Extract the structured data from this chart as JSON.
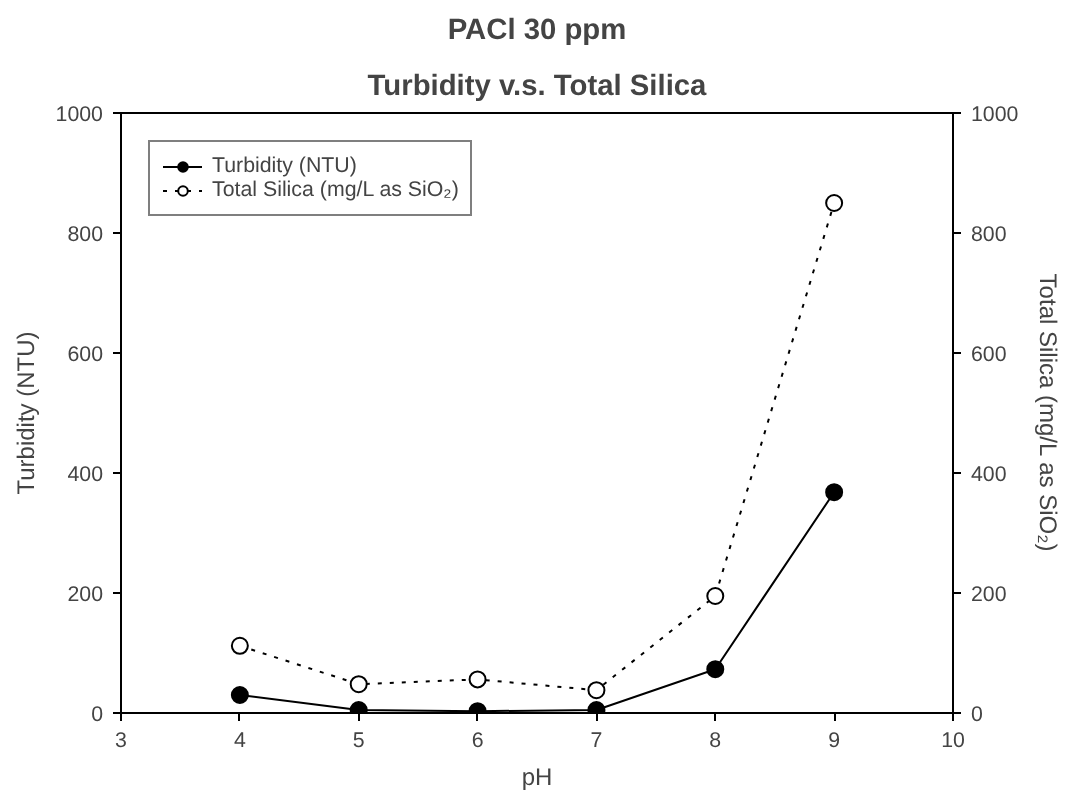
{
  "chart_data": {
    "type": "line",
    "title": "PACl 30 ppm",
    "subtitle": "Turbidity v.s. Total Silica",
    "xlabel": "pH",
    "ylabel": "Turbidity (NTU)",
    "y2label": "Total Silica (mg/L as SiO₂)",
    "x": [
      4,
      5,
      6,
      7,
      8,
      9
    ],
    "series": [
      {
        "name": "Turbidity (NTU)",
        "color": "#000000",
        "line_style": "solid",
        "values": [
          30,
          5,
          3,
          5,
          73,
          368
        ]
      },
      {
        "name": "Total Silica (mg/L as SiO₂)",
        "color": "#000000",
        "line_style": "dotted",
        "axis": "y2",
        "values": [
          112,
          48,
          56,
          38,
          195,
          850
        ]
      }
    ],
    "marker": "circle",
    "xlim": [
      3,
      10
    ],
    "xticks": [
      3,
      4,
      5,
      6,
      7,
      8,
      9,
      10
    ],
    "ylim": [
      0,
      1000
    ],
    "yticks": [
      0,
      200,
      400,
      600,
      800,
      1000
    ],
    "y2lim": [
      0,
      1000
    ],
    "y2ticks": [
      0,
      200,
      400,
      600,
      800,
      1000
    ],
    "grid": false,
    "legend": "top left"
  }
}
